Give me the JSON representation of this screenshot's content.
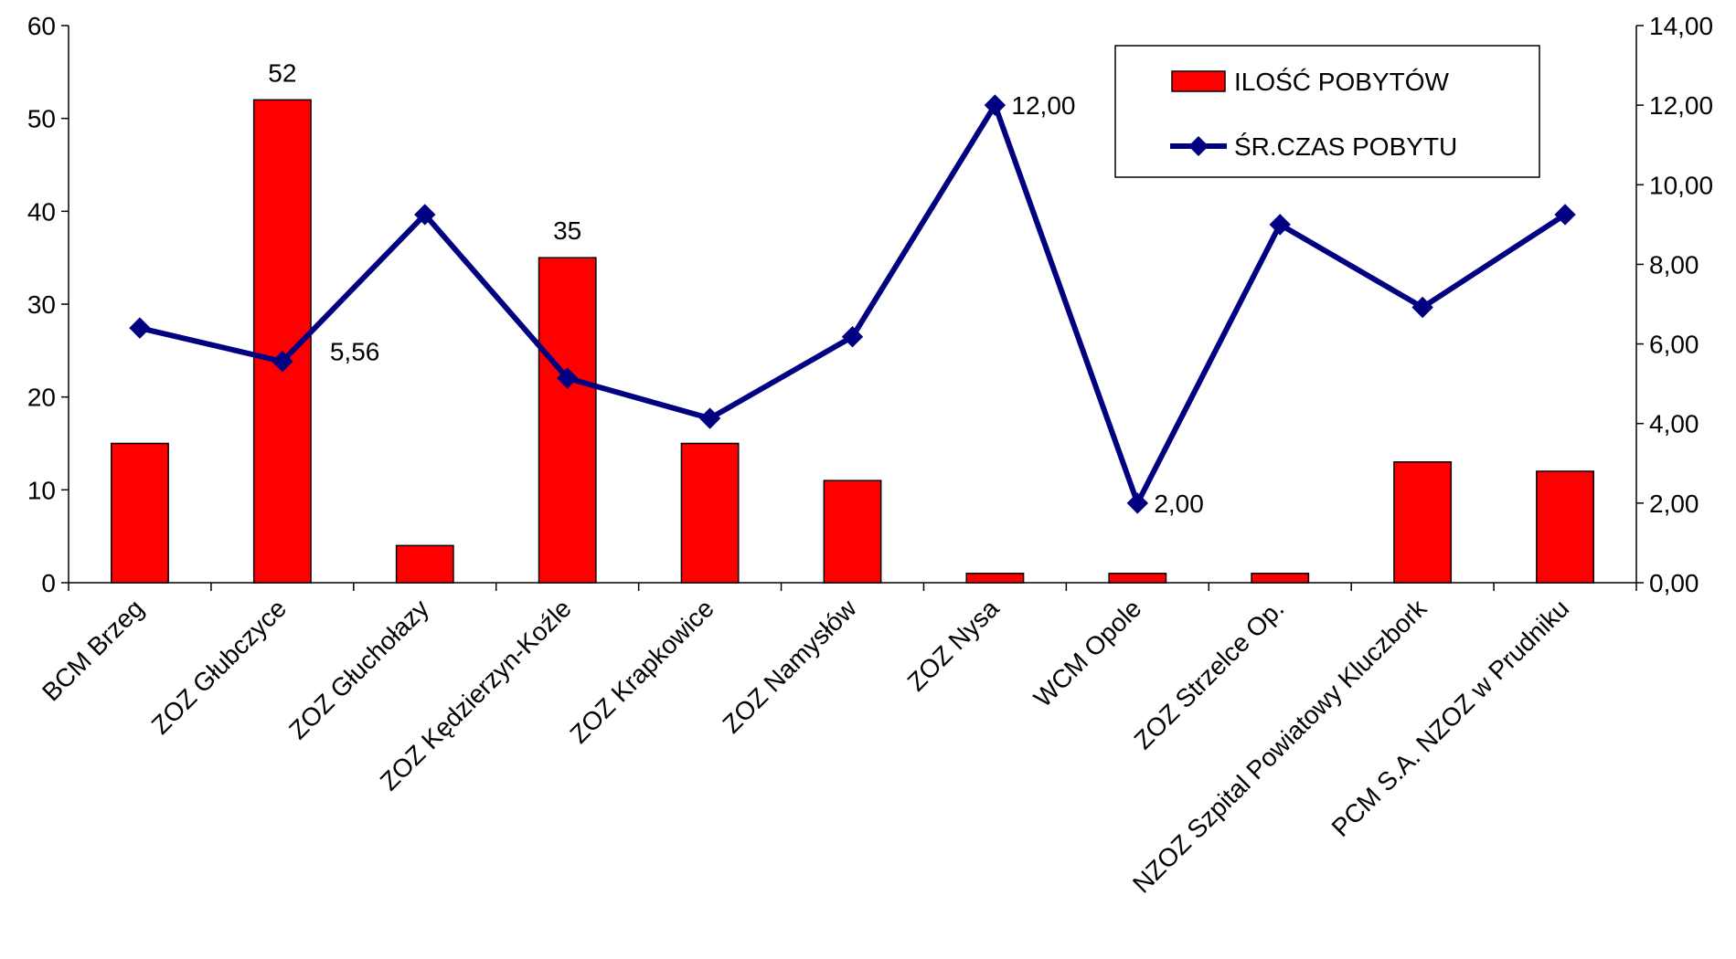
{
  "chart_data": {
    "type": "bar",
    "categories": [
      "BCM Brzeg",
      "ZOZ Głubczyce",
      "ZOZ Głuchołazy",
      "ZOZ Kędzierzyn-Koźle",
      "ZOZ Krapkowice",
      "ZOZ Namysłów",
      "ZOZ Nysa",
      "WCM Opole",
      "ZOZ Strzelce Op.",
      "NZOZ  Szpital Powiatowy Kluczbork",
      "PCM S.A. NZOZ w Prudniku"
    ],
    "series": [
      {
        "name": "ILOŚĆ POBYTÓW",
        "type": "bar",
        "axis": "left",
        "color": "#ff0000",
        "values": [
          15,
          52,
          4,
          35,
          15,
          11,
          1,
          1,
          1,
          13,
          12
        ],
        "labels": [
          "",
          "52",
          "",
          "35",
          "",
          "",
          "",
          "",
          "",
          "",
          ""
        ]
      },
      {
        "name": "ŚR.CZAS POBYTU",
        "type": "line",
        "axis": "right",
        "color": "#000080",
        "marker": "diamond",
        "values": [
          6.4,
          5.56,
          9.25,
          5.14,
          4.13,
          6.18,
          12.0,
          2.0,
          9.0,
          6.92,
          9.25
        ],
        "labels": [
          "",
          "5,56",
          "",
          "",
          "",
          "",
          "12,00",
          "2,00",
          "",
          "",
          ""
        ]
      }
    ],
    "y_left": {
      "ylim": [
        0,
        60
      ],
      "ticks": [
        "0",
        "10",
        "20",
        "30",
        "40",
        "50",
        "60"
      ]
    },
    "y_right": {
      "ylim": [
        0,
        14
      ],
      "ticks": [
        "0,00",
        "2,00",
        "4,00",
        "6,00",
        "8,00",
        "10,00",
        "12,00",
        "14,00"
      ]
    },
    "grid": false,
    "legend": {
      "placement": "top-right",
      "entries": [
        "ILOŚĆ POBYTÓW",
        "ŚR.CZAS POBYTU"
      ]
    },
    "title": "",
    "xlabel": "",
    "ylabel": ""
  }
}
